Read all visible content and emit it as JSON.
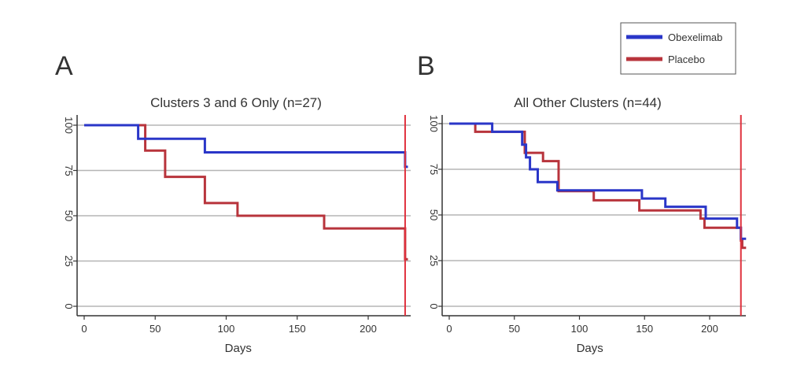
{
  "legend": {
    "entries": [
      {
        "label": "Obexelimab",
        "color": "#2a36c8"
      },
      {
        "label": "Placebo",
        "color": "#b8343c"
      }
    ]
  },
  "chart_data": [
    {
      "type": "line",
      "panel_letter": "A",
      "title": "Clusters 3 and 6 Only (n=27)",
      "xlabel": "Days",
      "ylabel": "",
      "xlim": [
        0,
        228
      ],
      "ylim": [
        0,
        100
      ],
      "x_ticks": [
        0,
        50,
        100,
        150,
        200
      ],
      "y_ticks": [
        0,
        25,
        50,
        75,
        100
      ],
      "grid": "horizontal",
      "step": true,
      "vertical_marker": {
        "x": 226,
        "color": "#e0303c"
      },
      "series": [
        {
          "name": "Obexelimab",
          "color": "#2a36c8",
          "points": [
            [
              0,
              100
            ],
            [
              38,
              100
            ],
            [
              38,
              92.5
            ],
            [
              85,
              92.5
            ],
            [
              85,
              85
            ],
            [
              226,
              85
            ],
            [
              226,
              77
            ],
            [
              228,
              77
            ]
          ]
        },
        {
          "name": "Placebo",
          "color": "#b8343c",
          "points": [
            [
              0,
              100
            ],
            [
              43,
              100
            ],
            [
              43,
              86
            ],
            [
              57,
              86
            ],
            [
              57,
              71.5
            ],
            [
              85,
              71.5
            ],
            [
              85,
              57
            ],
            [
              108,
              57
            ],
            [
              108,
              50
            ],
            [
              169,
              50
            ],
            [
              169,
              43
            ],
            [
              226,
              43
            ],
            [
              226,
              26
            ],
            [
              228,
              26
            ]
          ]
        }
      ]
    },
    {
      "type": "line",
      "panel_letter": "B",
      "title": "All Other Clusters (n=44)",
      "xlabel": "Days",
      "ylabel": "",
      "xlim": [
        0,
        228
      ],
      "ylim": [
        0,
        100
      ],
      "x_ticks": [
        0,
        50,
        100,
        150,
        200
      ],
      "y_ticks": [
        0,
        25,
        50,
        75,
        100
      ],
      "grid": "horizontal",
      "step": true,
      "vertical_marker": {
        "x": 224,
        "color": "#e0303c"
      },
      "series": [
        {
          "name": "Obexelimab",
          "color": "#2a36c8",
          "points": [
            [
              0,
              100
            ],
            [
              33,
              100
            ],
            [
              33,
              95.5
            ],
            [
              56,
              95.5
            ],
            [
              56,
              88.5
            ],
            [
              59,
              88.5
            ],
            [
              59,
              81.5
            ],
            [
              62,
              81.5
            ],
            [
              62,
              75
            ],
            [
              68,
              75
            ],
            [
              68,
              68
            ],
            [
              83,
              68
            ],
            [
              83,
              63.5
            ],
            [
              148,
              63.5
            ],
            [
              148,
              59
            ],
            [
              166,
              59
            ],
            [
              166,
              54.5
            ],
            [
              197,
              54.5
            ],
            [
              197,
              48
            ],
            [
              221,
              48
            ],
            [
              221,
              43
            ],
            [
              224,
              43
            ],
            [
              224,
              37
            ],
            [
              228,
              37
            ]
          ]
        },
        {
          "name": "Placebo",
          "color": "#b8343c",
          "points": [
            [
              0,
              100
            ],
            [
              20,
              100
            ],
            [
              20,
              95.5
            ],
            [
              58,
              95.5
            ],
            [
              58,
              84
            ],
            [
              72,
              84
            ],
            [
              72,
              79.5
            ],
            [
              84,
              79.5
            ],
            [
              84,
              63
            ],
            [
              111,
              63
            ],
            [
              111,
              58
            ],
            [
              146,
              58
            ],
            [
              146,
              52.5
            ],
            [
              193,
              52.5
            ],
            [
              193,
              48
            ],
            [
              196,
              48
            ],
            [
              196,
              43
            ],
            [
              224,
              43
            ],
            [
              224,
              36
            ],
            [
              225,
              36
            ],
            [
              225,
              32
            ],
            [
              228,
              32
            ]
          ]
        }
      ]
    }
  ]
}
